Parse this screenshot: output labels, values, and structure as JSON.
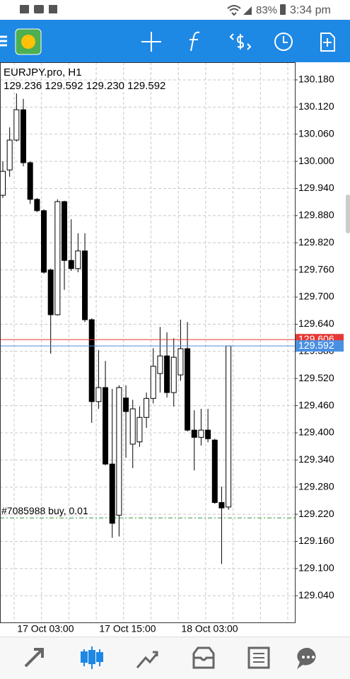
{
  "status_bar": {
    "battery": "83%",
    "time": "3:34 pm"
  },
  "chart_data": {
    "type": "candlestick",
    "title": "EURJPY.pro, H1",
    "ohlc_label": "129.236 129.592 129.230 129.592",
    "categories": [
      null,
      null,
      "17 Oct 03:00",
      null,
      null,
      null,
      null,
      null,
      null,
      null,
      null,
      null,
      null,
      null,
      "17 Oct 15:00",
      null,
      null,
      null,
      null,
      null,
      null,
      null,
      null,
      null,
      null,
      null,
      "18 Oct 03:00",
      null,
      null,
      null,
      null,
      null,
      null,
      null
    ],
    "open": [
      129.925,
      129.981,
      130.047,
      130.114,
      129.997,
      129.916,
      129.891,
      129.76,
      129.661,
      129.911,
      129.781,
      129.763,
      129.802,
      129.65,
      129.469,
      129.5,
      129.331,
      129.218,
      129.477,
      129.375,
      129.38,
      129.434,
      129.476,
      129.531,
      129.57,
      129.489,
      129.528,
      129.586,
      129.406,
      129.39,
      129.406,
      129.384,
      129.246,
      129.236
    ],
    "high": [
      130.0,
      130.075,
      130.15,
      130.138,
      130.0,
      129.919,
      129.894,
      129.763,
      129.916,
      129.913,
      129.872,
      129.841,
      129.841,
      129.653,
      129.583,
      129.559,
      129.497,
      129.505,
      129.505,
      129.473,
      129.458,
      129.489,
      129.587,
      129.634,
      129.622,
      129.609,
      129.65,
      129.645,
      129.45,
      129.453,
      129.453,
      129.387,
      129.281,
      129.592
    ],
    "low": [
      129.919,
      129.966,
      130.044,
      129.989,
      129.906,
      129.888,
      129.752,
      129.575,
      129.659,
      129.716,
      129.758,
      129.755,
      129.645,
      129.422,
      129.453,
      129.328,
      129.168,
      129.171,
      129.345,
      129.322,
      129.369,
      129.411,
      129.465,
      129.489,
      129.478,
      129.458,
      129.515,
      129.403,
      129.317,
      129.372,
      129.379,
      129.243,
      129.11,
      129.23
    ],
    "close": [
      129.978,
      130.047,
      130.114,
      129.997,
      129.916,
      129.891,
      129.755,
      129.661,
      129.911,
      129.781,
      129.763,
      129.802,
      129.65,
      129.469,
      129.5,
      129.331,
      129.2,
      129.5,
      129.447,
      129.453,
      129.434,
      129.476,
      129.547,
      129.57,
      129.489,
      129.567,
      129.586,
      129.406,
      129.39,
      129.406,
      129.387,
      129.246,
      129.234,
      129.592
    ],
    "up_color": "#ffffff",
    "down_color": "#000000",
    "outline_color": "#000000",
    "ylim": [
      128.981,
      130.219
    ],
    "yticks": [
      {
        "value": 130.18,
        "label": "130.180"
      },
      {
        "value": 130.12,
        "label": "130.120"
      },
      {
        "value": 130.06,
        "label": "130.060"
      },
      {
        "value": 130.0,
        "label": "130.000"
      },
      {
        "value": 129.94,
        "label": "129.940"
      },
      {
        "value": 129.88,
        "label": "129.880"
      },
      {
        "value": 129.82,
        "label": "129.820"
      },
      {
        "value": 129.76,
        "label": "129.760"
      },
      {
        "value": 129.7,
        "label": "129.700"
      },
      {
        "value": 129.64,
        "label": "129.640"
      },
      {
        "value": 129.58,
        "label": "129.580"
      },
      {
        "value": 129.52,
        "label": "129.520"
      },
      {
        "value": 129.46,
        "label": "129.460"
      },
      {
        "value": 129.4,
        "label": "129.400"
      },
      {
        "value": 129.34,
        "label": "129.340"
      },
      {
        "value": 129.28,
        "label": "129.280"
      },
      {
        "value": 129.22,
        "label": "129.220"
      },
      {
        "value": 129.16,
        "label": "129.160"
      },
      {
        "value": 129.1,
        "label": "129.100"
      },
      {
        "value": 129.04,
        "label": "129.040"
      }
    ],
    "grid": true,
    "price_lines": [
      {
        "value": 129.606,
        "color": "#e53935"
      },
      {
        "value": 129.592,
        "color": "#4a90e2"
      }
    ],
    "order_line": {
      "label": "#7085988 buy, 0.01",
      "value": 129.212,
      "color": "#2e9a3a"
    }
  }
}
